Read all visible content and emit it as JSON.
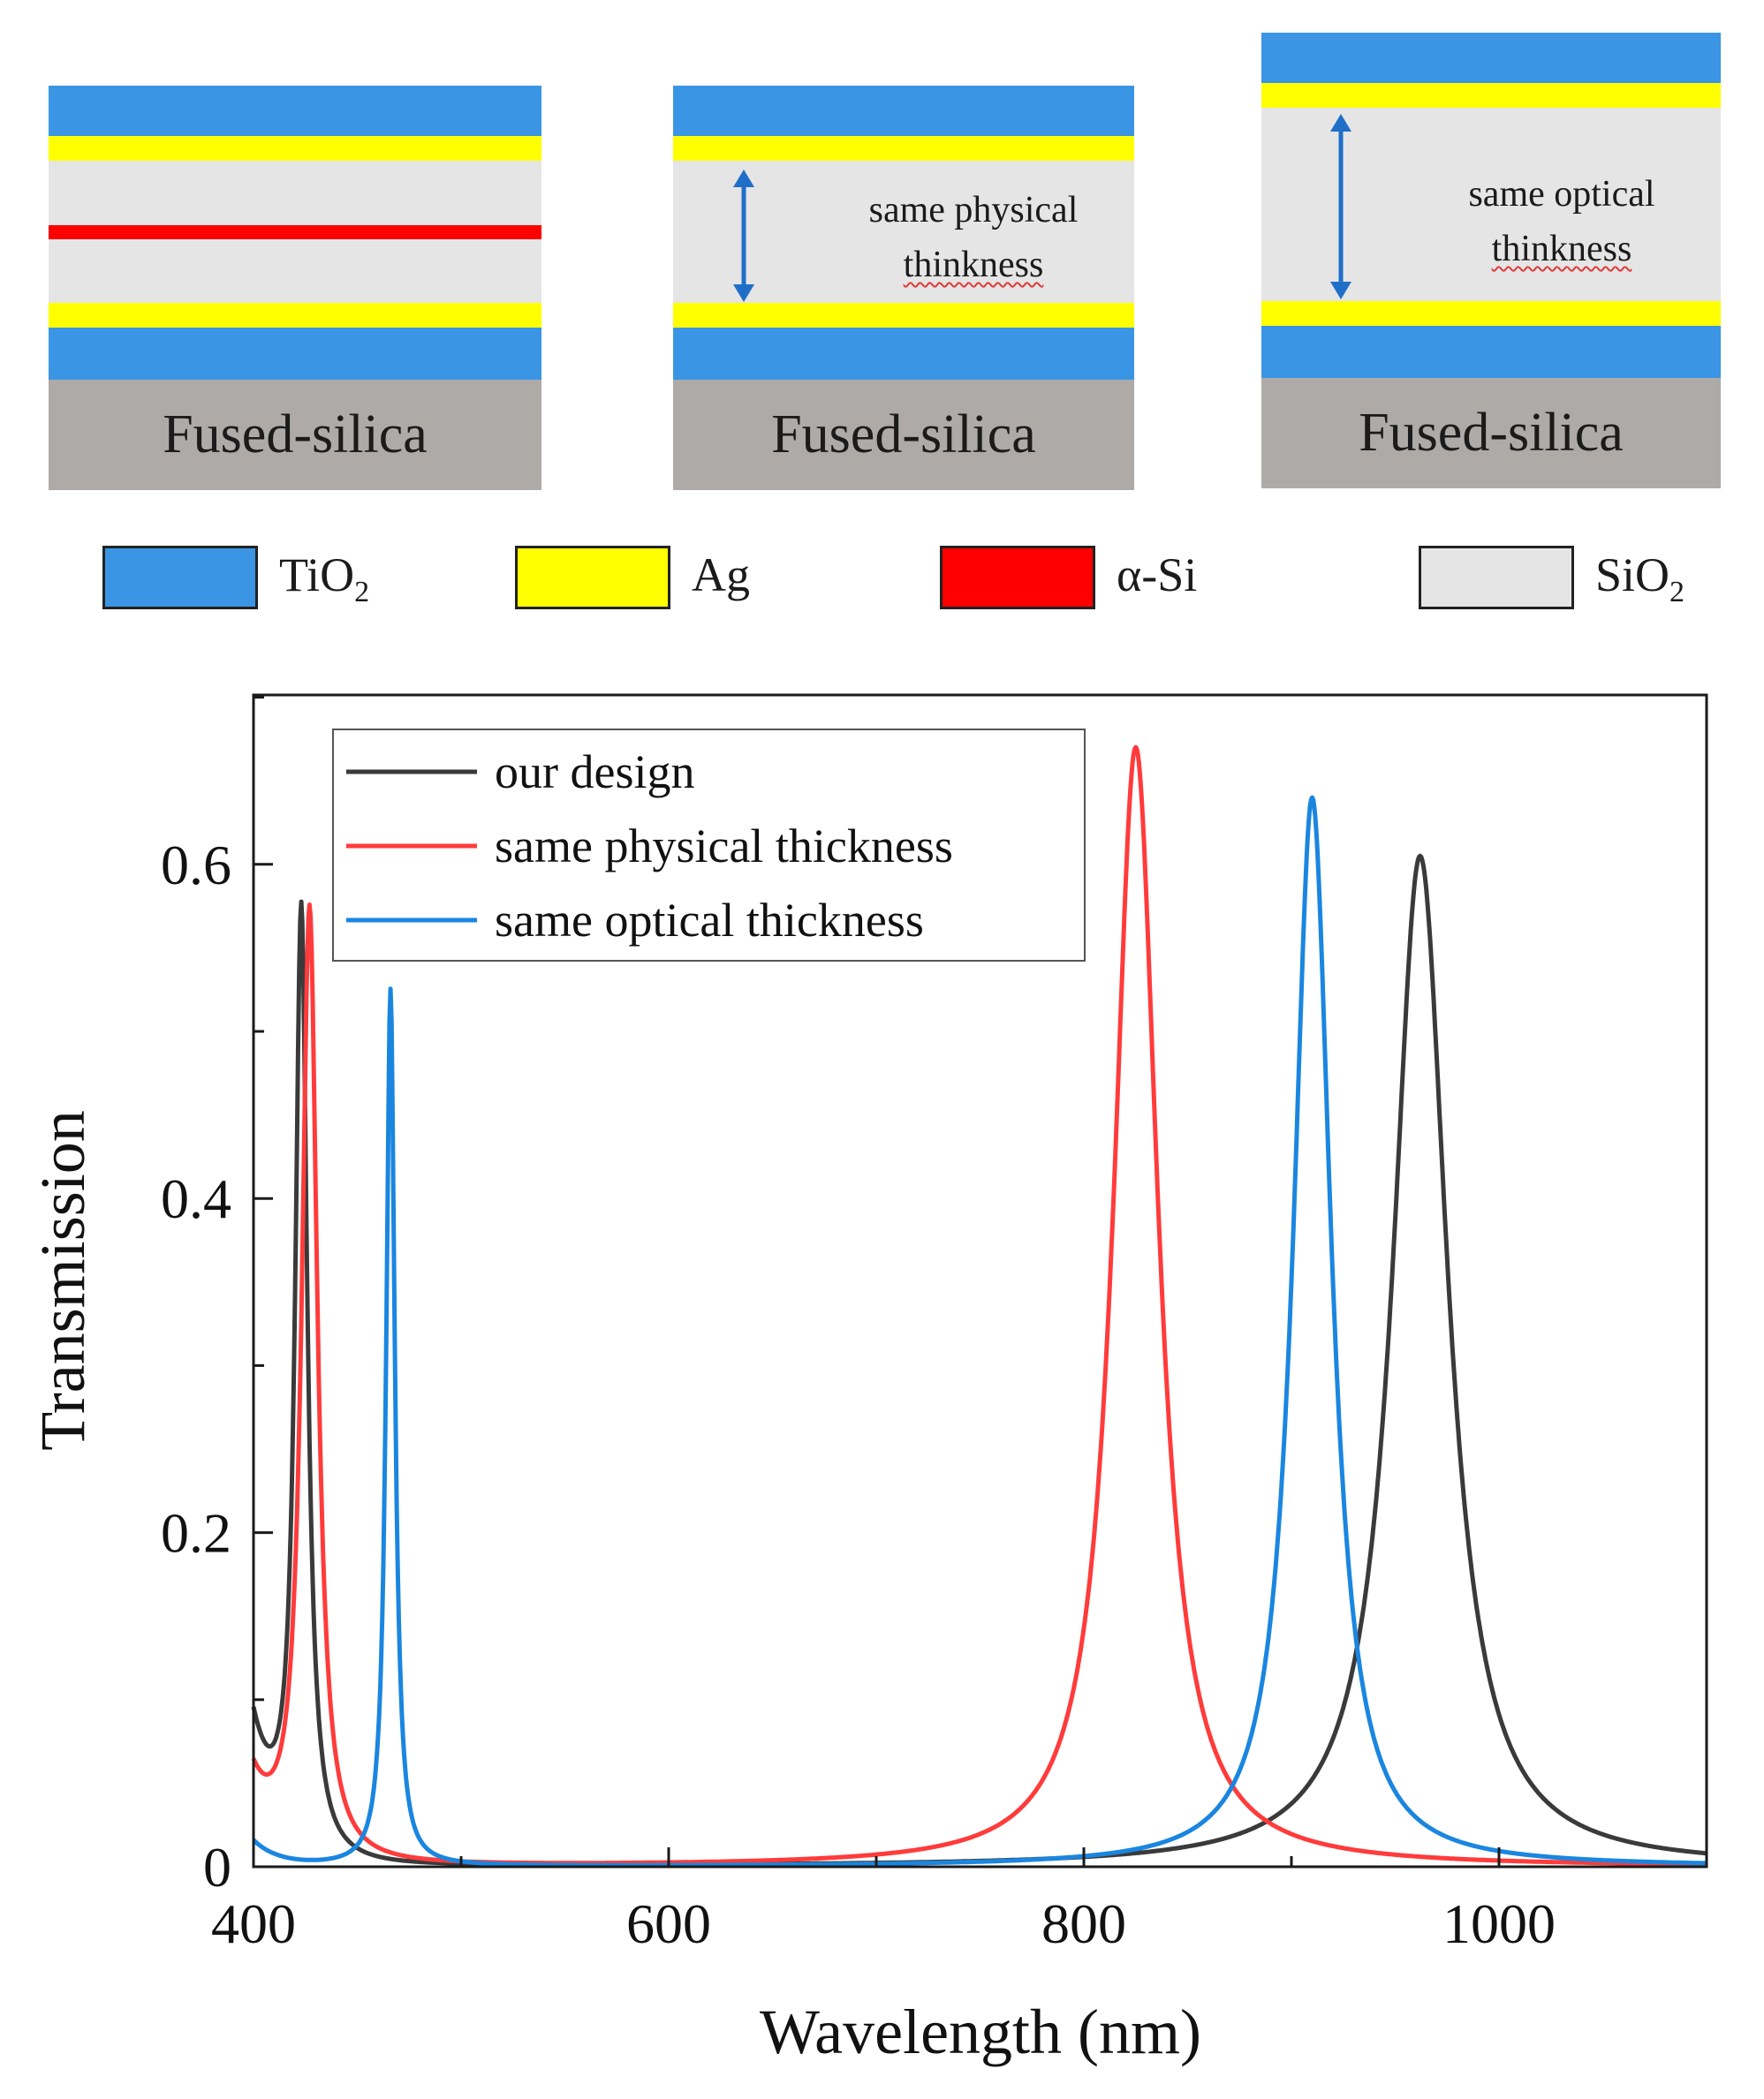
{
  "colors": {
    "TiO2": "#3a95e4",
    "Ag": "#ffff00",
    "aSi": "#ff0000",
    "SiO2": "#e5e5e5",
    "substrate": "#aeaaa8",
    "arrow": "#1f6fc8"
  },
  "diagrams": [
    {
      "substrate_label": "Fused-silica",
      "note_line1": "",
      "note_line2": ""
    },
    {
      "substrate_label": "Fused-silica",
      "note_line1": "same physical",
      "note_line2": "thinkness"
    },
    {
      "substrate_label": "Fused-silica",
      "note_line1": "same optical",
      "note_line2": "thinkness"
    }
  ],
  "material_legend": [
    {
      "name": "TiO",
      "sub": "2",
      "color": "#3a95e4"
    },
    {
      "name": "Ag",
      "sub": "",
      "color": "#ffff00"
    },
    {
      "name": "α-Si",
      "sub": "",
      "color": "#ff0000"
    },
    {
      "name": "SiO",
      "sub": "2",
      "color": "#e5e5e5"
    }
  ],
  "chart_data": {
    "type": "line",
    "title": "",
    "xlabel": "Wavelength (nm)",
    "ylabel": "Transmission",
    "xlim": [
      400,
      1100
    ],
    "ylim": [
      0,
      0.7
    ],
    "xticks": [
      400,
      600,
      800,
      1000
    ],
    "xtick_labels": [
      "400",
      "600",
      "800",
      "1000"
    ],
    "yticks": [
      0,
      0.2,
      0.4,
      0.6
    ],
    "ytick_labels": [
      "0",
      "0.2",
      "0.4",
      "0.6"
    ],
    "grid": false,
    "legend_position": "top-left",
    "series": [
      {
        "name": "our design",
        "color": "#3a3a3a",
        "base": 0.0,
        "peaks": [
          {
            "center": 423,
            "height": 0.565,
            "hwhm": 3.5
          },
          {
            "center": 962,
            "height": 0.605,
            "hwhm": 16
          }
        ],
        "start_value": 0.11
      },
      {
        "name": "same physical thickness",
        "color": "#ff3b3b",
        "base": 0.0,
        "peaks": [
          {
            "center": 427,
            "height": 0.57,
            "hwhm": 4.5
          },
          {
            "center": 825,
            "height": 0.67,
            "hwhm": 13
          }
        ],
        "start_value": 0.065
      },
      {
        "name": "same optical thickness",
        "color": "#1a86e0",
        "base": 0.0,
        "peaks": [
          {
            "center": 466,
            "height": 0.525,
            "hwhm": 2.5
          },
          {
            "center": 910,
            "height": 0.64,
            "hwhm": 11
          }
        ],
        "start_value": 0.02
      }
    ]
  }
}
